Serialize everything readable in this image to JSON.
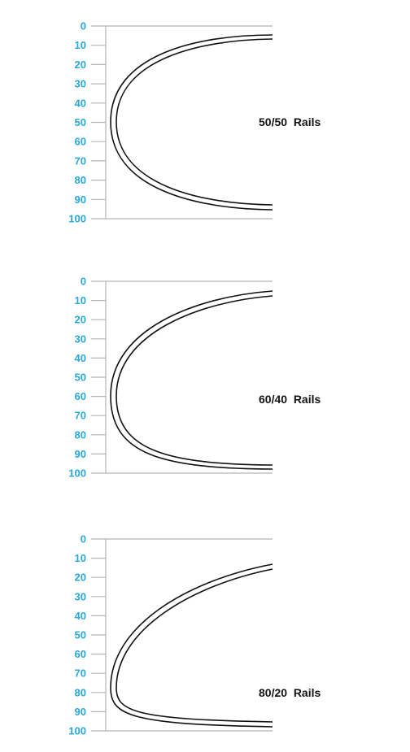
{
  "colors": {
    "tick_label": "#29a8dc",
    "axis": "#b5b5b5",
    "outline": "#111111"
  },
  "chart_data": [
    {
      "type": "diagram",
      "ticks": [
        "0",
        "10",
        "20",
        "30",
        "40",
        "50",
        "60",
        "70",
        "80",
        "90",
        "100"
      ],
      "label": "50/50  Rails",
      "widest_point": 50
    },
    {
      "type": "diagram",
      "ticks": [
        "0",
        "10",
        "20",
        "30",
        "40",
        "50",
        "60",
        "70",
        "80",
        "90",
        "100"
      ],
      "label": "60/40  Rails",
      "widest_point": 60
    },
    {
      "type": "diagram",
      "ticks": [
        "0",
        "10",
        "20",
        "30",
        "40",
        "50",
        "60",
        "70",
        "80",
        "90",
        "100"
      ],
      "label": "80/20  Rails",
      "widest_point": 80
    }
  ]
}
